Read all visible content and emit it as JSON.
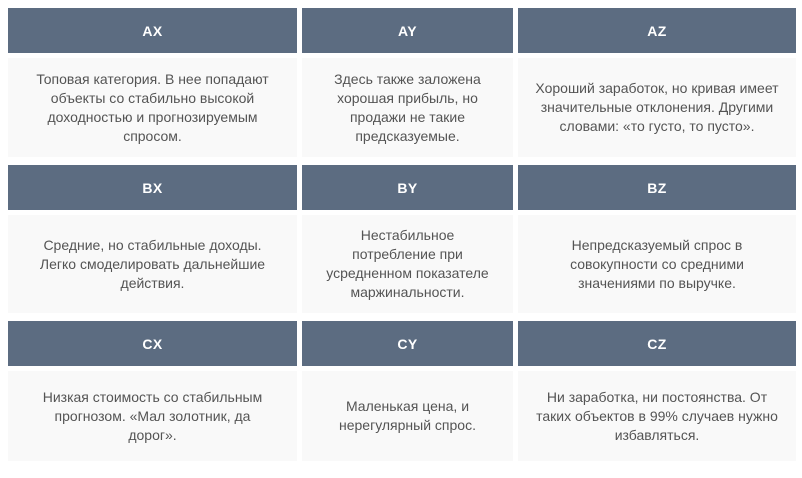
{
  "colors": {
    "header_bg": "#5c6c81",
    "header_text": "#ffffff",
    "cell_bg": "#f9f9f9",
    "body_text": "#545454",
    "page_bg": "#ffffff"
  },
  "matrix": {
    "rows": [
      {
        "cells": [
          {
            "code": "AX",
            "description": "Топовая категория. В нее попадают объекты со стабильно высокой доходностью и прогнозируемым спросом."
          },
          {
            "code": "AY",
            "description": "Здесь также заложена хорошая прибыль, но продажи не такие предсказуемые."
          },
          {
            "code": "AZ",
            "description": "Хороший заработок, но кривая имеет значительные отклонения. Другими словами: «то густо, то пусто»."
          }
        ]
      },
      {
        "cells": [
          {
            "code": "BX",
            "description": "Средние, но стабильные доходы. Легко смоделировать дальнейшие действия."
          },
          {
            "code": "BY",
            "description": "Нестабильное потребление при усредненном показателе маржинальности."
          },
          {
            "code": "BZ",
            "description": "Непредсказуемый спрос в совокупности со средними значениями по выручке."
          }
        ]
      },
      {
        "cells": [
          {
            "code": "CX",
            "description": "Низкая стоимость со стабильным прогнозом. «Мал золотник, да дорог»."
          },
          {
            "code": "CY",
            "description": "Маленькая цена, и нерегулярный спрос."
          },
          {
            "code": "CZ",
            "description": "Ни заработка, ни постоянства. От таких объектов в 99% случаев нужно избавляться."
          }
        ]
      }
    ]
  }
}
